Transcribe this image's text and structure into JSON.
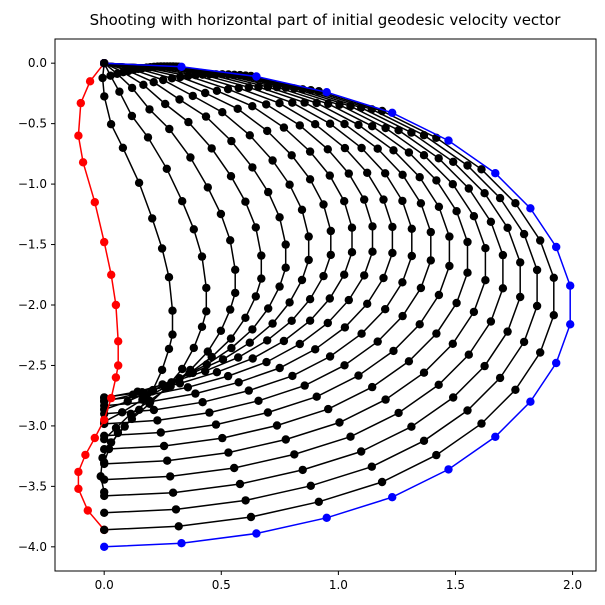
{
  "chart_data": {
    "type": "line",
    "title": "Shooting with horizontal part of initial geodesic velocity vector",
    "xlabel": "",
    "ylabel": "",
    "xlim": [
      -0.21,
      2.1
    ],
    "ylim": [
      -4.2,
      0.2
    ],
    "grid": false,
    "x_ticks": [
      0.0,
      0.5,
      1.0,
      1.5,
      2.0
    ],
    "x_tick_labels": [
      "0.0",
      "0.5",
      "1.0",
      "1.5",
      "2.0"
    ],
    "y_ticks": [
      0.0,
      -0.5,
      -1.0,
      -1.5,
      -2.0,
      -2.5,
      -3.0,
      -3.5,
      -4.0
    ],
    "y_tick_labels": [
      "0.0",
      "−0.5",
      "−1.0",
      "−1.5",
      "−2.0",
      "−2.5",
      "−3.0",
      "−3.5",
      "−4.0"
    ],
    "colors": {
      "black": "#000000",
      "red": "#ff0000",
      "blue": "#0000ff"
    },
    "series": [
      {
        "color": "red",
        "x": [
          0.0,
          -0.06,
          -0.1,
          -0.11,
          -0.09,
          -0.04,
          0.0,
          0.03,
          0.05,
          0.06,
          0.06,
          0.05,
          0.03,
          0.0,
          -0.04,
          -0.08,
          -0.11,
          -0.11,
          -0.07,
          0.0
        ],
        "y": [
          0.0,
          -0.15,
          -0.33,
          -0.6,
          -0.82,
          -1.15,
          -1.48,
          -1.75,
          -2.0,
          -2.3,
          -2.5,
          -2.6,
          -2.77,
          -2.95,
          -3.1,
          -3.24,
          -3.38,
          -3.52,
          -3.7,
          -3.86
        ]
      },
      {
        "color": "blue",
        "x": [
          0.0,
          0.33,
          0.65,
          0.95,
          1.23,
          1.47,
          1.67,
          1.82,
          1.93,
          1.99,
          1.99,
          1.93,
          1.82,
          1.67,
          1.47,
          1.23,
          0.95,
          0.65,
          0.33,
          0.0
        ],
        "y": [
          0.0,
          -0.03,
          -0.11,
          -0.24,
          -0.41,
          -0.64,
          -0.91,
          -1.2,
          -1.52,
          -1.84,
          -2.16,
          -2.48,
          -2.8,
          -3.09,
          -3.36,
          -3.59,
          -3.76,
          -3.89,
          -3.97,
          -4.0
        ]
      }
    ]
  }
}
